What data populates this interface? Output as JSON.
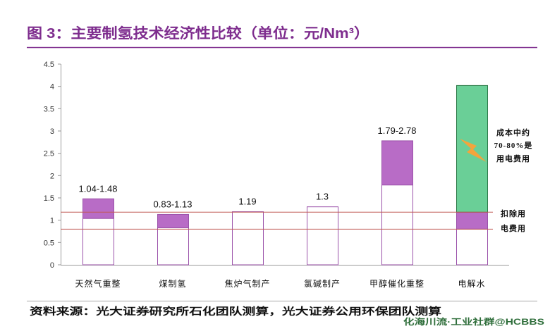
{
  "chart_data": {
    "type": "bar",
    "title": "图 3：主要制氢技术经济性比较（单位：元/Nm³）",
    "xlabel": "",
    "ylabel": "",
    "ylim": [
      0,
      4.5
    ],
    "y_ticks": [
      0,
      0.5,
      1,
      1.5,
      2,
      2.5,
      3,
      3.5,
      4,
      4.5
    ],
    "grid": false,
    "legend": "none",
    "categories": [
      "天然气重整",
      "煤制氢",
      "焦炉气制产",
      "氯碱制产",
      "甲醇催化重整",
      "电解水"
    ],
    "bars": [
      {
        "label": "1.04-1.48",
        "segments": [
          {
            "from": 0,
            "to": 1.04,
            "fill": "#FFFFFF",
            "stroke": "#9B52AA"
          },
          {
            "from": 1.04,
            "to": 1.48,
            "fill": "#B86CC6",
            "stroke": "#9B52AA"
          }
        ]
      },
      {
        "label": "0.83-1.13",
        "segments": [
          {
            "from": 0,
            "to": 0.83,
            "fill": "#FFFFFF",
            "stroke": "#9B52AA"
          },
          {
            "from": 0.83,
            "to": 1.13,
            "fill": "#B86CC6",
            "stroke": "#9B52AA"
          }
        ]
      },
      {
        "label": "1.19",
        "segments": [
          {
            "from": 0,
            "to": 1.19,
            "fill": "#FFFFFF",
            "stroke": "#9B52AA"
          }
        ]
      },
      {
        "label": "1.3",
        "segments": [
          {
            "from": 0,
            "to": 1.3,
            "fill": "#FFFFFF",
            "stroke": "#9B52AA"
          }
        ]
      },
      {
        "label": "1.79-2.78",
        "segments": [
          {
            "from": 0,
            "to": 1.79,
            "fill": "#FFFFFF",
            "stroke": "#9B52AA"
          },
          {
            "from": 1.79,
            "to": 2.78,
            "fill": "#B86CC6",
            "stroke": "#9B52AA"
          }
        ]
      },
      {
        "segments": [
          {
            "from": 0,
            "to": 0.8,
            "fill": "#FFFFFF",
            "stroke": "#9B52AA"
          },
          {
            "from": 0.8,
            "to": 1.18,
            "fill": "#B86CC6",
            "stroke": "#9B52AA"
          },
          {
            "from": 1.18,
            "to": 4.02,
            "fill": "#6ACF97",
            "stroke": "#2E7A49"
          }
        ]
      }
    ],
    "reference_lines": [
      1.18,
      0.8
    ],
    "annotations": [
      {
        "lines": [
          "成本中约",
          "70-80%是",
          "用电费用"
        ]
      },
      {
        "lines": [
          "扣除用",
          "电费用"
        ]
      }
    ]
  },
  "source": "资料来源：光大证券研究所石化团队测算，光大证券公用环保团队测算",
  "watermark": "化海川流·工业社群@HCBBS",
  "colors": {
    "title": "#7E2D8E",
    "title_rule": "#7E2D8E",
    "axis": "#9A9A9A",
    "reference_line": "#C05A55",
    "arrow": "#F4A43C",
    "watermark": "#2F6E3B",
    "source_rule": "#A8A8A8"
  }
}
